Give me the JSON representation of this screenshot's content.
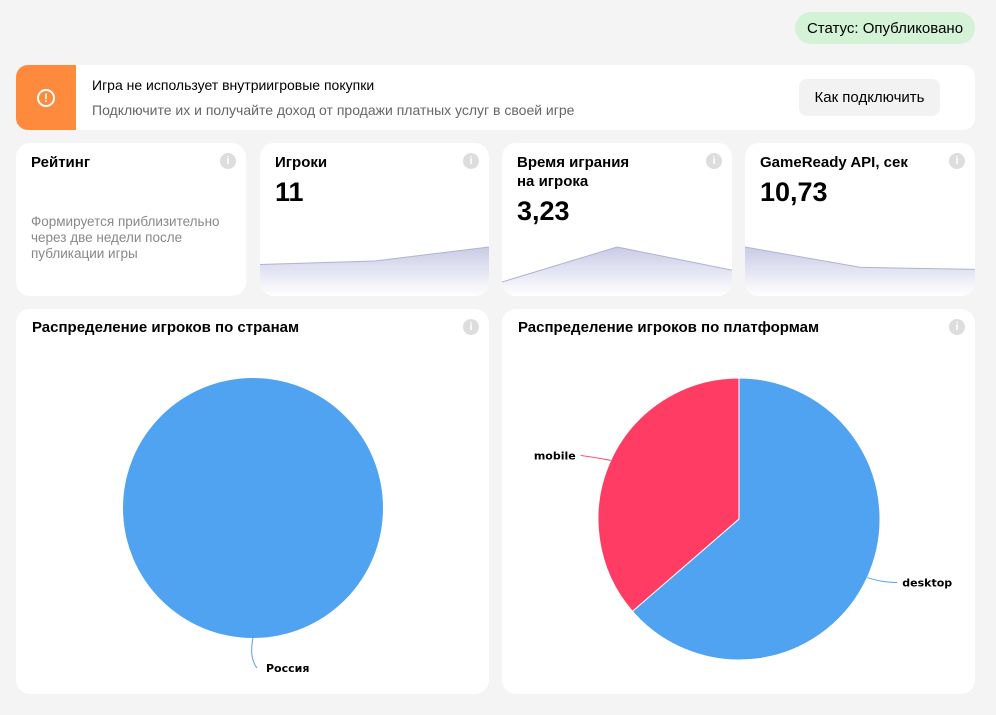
{
  "status": "Статус: Опубликовано",
  "banner": {
    "title": "Игра не использует внутриигровые покупки",
    "subtitle": "Подключите их и получайте доход от продажи платных услуг в своей игре",
    "button": "Как подключить",
    "icon": "warning-icon",
    "accent": "#fe8a3e"
  },
  "metrics": [
    {
      "title": "Рейтинг",
      "note": "Формируется приблизительно через две недели после публикации игры"
    },
    {
      "title": "Игроки",
      "value": "11",
      "trend": [
        0.45,
        0.5,
        0.7
      ]
    },
    {
      "title": "Время играния на игрока",
      "title_line1": "Время играния",
      "title_line2": "на игрока",
      "value": "3,23",
      "trend": [
        0.2,
        0.7,
        0.37
      ]
    },
    {
      "title": "GameReady API, сек",
      "value": "10,73",
      "trend": [
        0.7,
        0.41,
        0.38
      ]
    }
  ],
  "chart_data": [
    {
      "type": "pie",
      "title": "Распределение игроков по странам",
      "categories": [
        "Россия"
      ],
      "values": [
        11
      ],
      "colors": [
        "#4fa3f0"
      ]
    },
    {
      "type": "pie",
      "title": "Распределение игроков по платформам",
      "categories": [
        "desktop",
        "mobile"
      ],
      "values": [
        7,
        4
      ],
      "colors": [
        "#4fa3f0",
        "#ff3d64"
      ]
    }
  ]
}
